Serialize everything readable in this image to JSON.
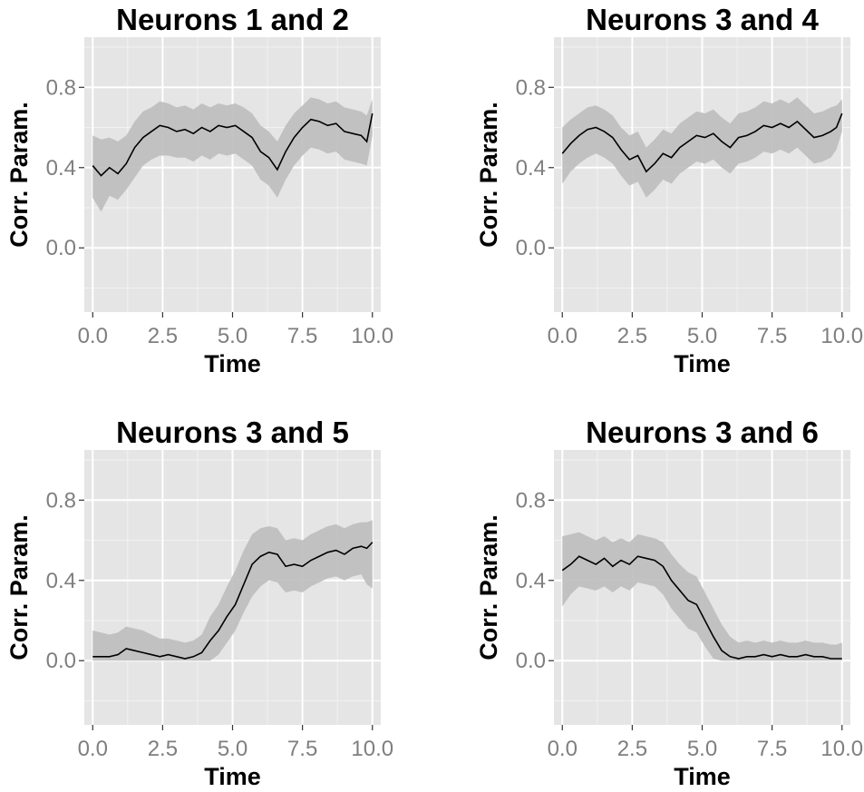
{
  "colors": {
    "panel_background": "#e5e5e5",
    "grid_major": "#ffffff",
    "grid_minor": "#f2f2f2",
    "ribbon": "#bdbdbd",
    "line": "#000000",
    "tick_text": "#7f7f7f"
  },
  "chart_data": [
    {
      "type": "line",
      "title": "Neurons  1 and  2",
      "xlabel": "Time",
      "ylabel": "Corr. Param.",
      "xlim": [
        -0.3,
        10.3
      ],
      "ylim": [
        -0.32,
        1.05
      ],
      "xticks": [
        "0.0",
        "2.5",
        "5.0",
        "7.5",
        "10.0"
      ],
      "xtick_values": [
        0,
        2.5,
        5,
        7.5,
        10
      ],
      "yticks": [
        "0.0",
        "0.4",
        "0.8"
      ],
      "ytick_values": [
        0,
        0.4,
        0.8
      ],
      "grid": true,
      "series": [
        {
          "x": [
            0.0,
            0.3,
            0.6,
            0.9,
            1.2,
            1.5,
            1.8,
            2.1,
            2.4,
            2.7,
            3.0,
            3.3,
            3.6,
            3.9,
            4.2,
            4.5,
            4.8,
            5.1,
            5.4,
            5.7,
            6.0,
            6.3,
            6.6,
            6.9,
            7.2,
            7.5,
            7.8,
            8.1,
            8.4,
            8.7,
            9.0,
            9.3,
            9.6,
            9.8,
            10.0
          ],
          "y": [
            0.41,
            0.36,
            0.4,
            0.37,
            0.42,
            0.5,
            0.55,
            0.58,
            0.61,
            0.6,
            0.58,
            0.59,
            0.57,
            0.6,
            0.58,
            0.61,
            0.6,
            0.61,
            0.58,
            0.55,
            0.48,
            0.45,
            0.39,
            0.48,
            0.55,
            0.6,
            0.64,
            0.63,
            0.61,
            0.62,
            0.58,
            0.57,
            0.56,
            0.53,
            0.67
          ],
          "lower": [
            0.25,
            0.18,
            0.26,
            0.24,
            0.29,
            0.35,
            0.41,
            0.44,
            0.46,
            0.46,
            0.45,
            0.45,
            0.43,
            0.46,
            0.44,
            0.47,
            0.46,
            0.47,
            0.44,
            0.41,
            0.34,
            0.31,
            0.25,
            0.34,
            0.41,
            0.46,
            0.5,
            0.49,
            0.47,
            0.48,
            0.44,
            0.43,
            0.42,
            0.41,
            0.56
          ],
          "upper": [
            0.56,
            0.54,
            0.55,
            0.53,
            0.56,
            0.63,
            0.68,
            0.7,
            0.73,
            0.72,
            0.7,
            0.71,
            0.69,
            0.72,
            0.7,
            0.72,
            0.71,
            0.72,
            0.7,
            0.67,
            0.61,
            0.58,
            0.53,
            0.61,
            0.67,
            0.71,
            0.75,
            0.74,
            0.72,
            0.73,
            0.7,
            0.69,
            0.68,
            0.66,
            0.74
          ]
        }
      ]
    },
    {
      "type": "line",
      "title": "Neurons  3 and  4",
      "xlabel": "Time",
      "ylabel": "Corr. Param.",
      "xlim": [
        -0.3,
        10.3
      ],
      "ylim": [
        -0.32,
        1.05
      ],
      "xticks": [
        "0.0",
        "2.5",
        "5.0",
        "7.5",
        "10.0"
      ],
      "xtick_values": [
        0,
        2.5,
        5,
        7.5,
        10
      ],
      "yticks": [
        "0.0",
        "0.4",
        "0.8"
      ],
      "ytick_values": [
        0,
        0.4,
        0.8
      ],
      "grid": true,
      "series": [
        {
          "x": [
            0.0,
            0.3,
            0.6,
            0.9,
            1.2,
            1.5,
            1.8,
            2.1,
            2.4,
            2.7,
            3.0,
            3.3,
            3.6,
            3.9,
            4.2,
            4.5,
            4.8,
            5.1,
            5.4,
            5.7,
            6.0,
            6.3,
            6.6,
            6.9,
            7.2,
            7.5,
            7.8,
            8.1,
            8.4,
            8.7,
            9.0,
            9.3,
            9.6,
            9.8,
            10.0
          ],
          "y": [
            0.47,
            0.52,
            0.56,
            0.59,
            0.6,
            0.58,
            0.55,
            0.49,
            0.44,
            0.46,
            0.38,
            0.42,
            0.47,
            0.45,
            0.5,
            0.53,
            0.56,
            0.55,
            0.57,
            0.53,
            0.5,
            0.55,
            0.56,
            0.58,
            0.61,
            0.6,
            0.62,
            0.6,
            0.63,
            0.59,
            0.55,
            0.56,
            0.58,
            0.6,
            0.67
          ],
          "lower": [
            0.32,
            0.38,
            0.42,
            0.45,
            0.47,
            0.45,
            0.42,
            0.36,
            0.31,
            0.33,
            0.25,
            0.29,
            0.34,
            0.32,
            0.37,
            0.4,
            0.43,
            0.42,
            0.44,
            0.4,
            0.37,
            0.42,
            0.43,
            0.45,
            0.48,
            0.47,
            0.49,
            0.47,
            0.5,
            0.46,
            0.42,
            0.43,
            0.45,
            0.49,
            0.58
          ],
          "upper": [
            0.6,
            0.64,
            0.67,
            0.7,
            0.71,
            0.69,
            0.66,
            0.6,
            0.56,
            0.58,
            0.5,
            0.54,
            0.59,
            0.57,
            0.62,
            0.65,
            0.68,
            0.67,
            0.69,
            0.65,
            0.62,
            0.67,
            0.68,
            0.7,
            0.73,
            0.72,
            0.74,
            0.72,
            0.75,
            0.71,
            0.67,
            0.68,
            0.7,
            0.71,
            0.74
          ]
        }
      ]
    },
    {
      "type": "line",
      "title": "Neurons  3 and  5",
      "xlabel": "Time",
      "ylabel": "Corr. Param.",
      "xlim": [
        -0.3,
        10.3
      ],
      "ylim": [
        -0.32,
        1.05
      ],
      "xticks": [
        "0.0",
        "2.5",
        "5.0",
        "7.5",
        "10.0"
      ],
      "xtick_values": [
        0,
        2.5,
        5,
        7.5,
        10
      ],
      "yticks": [
        "0.0",
        "0.4",
        "0.8"
      ],
      "ytick_values": [
        0,
        0.4,
        0.8
      ],
      "grid": true,
      "series": [
        {
          "x": [
            0.0,
            0.3,
            0.6,
            0.9,
            1.2,
            1.5,
            1.8,
            2.1,
            2.4,
            2.7,
            3.0,
            3.3,
            3.6,
            3.9,
            4.2,
            4.5,
            4.8,
            5.1,
            5.4,
            5.7,
            6.0,
            6.3,
            6.6,
            6.9,
            7.2,
            7.5,
            7.8,
            8.1,
            8.4,
            8.7,
            9.0,
            9.3,
            9.6,
            9.8,
            10.0
          ],
          "y": [
            0.02,
            0.02,
            0.02,
            0.03,
            0.06,
            0.05,
            0.04,
            0.03,
            0.02,
            0.03,
            0.02,
            0.01,
            0.02,
            0.04,
            0.1,
            0.15,
            0.22,
            0.28,
            0.38,
            0.48,
            0.52,
            0.54,
            0.53,
            0.47,
            0.48,
            0.47,
            0.5,
            0.52,
            0.54,
            0.55,
            0.53,
            0.56,
            0.57,
            0.56,
            0.59
          ],
          "lower": [
            0.0,
            0.0,
            0.0,
            0.0,
            0.0,
            0.0,
            0.0,
            0.0,
            0.0,
            0.0,
            0.0,
            0.0,
            0.0,
            0.0,
            0.0,
            0.03,
            0.09,
            0.15,
            0.24,
            0.32,
            0.37,
            0.4,
            0.39,
            0.34,
            0.35,
            0.34,
            0.37,
            0.39,
            0.41,
            0.42,
            0.4,
            0.42,
            0.43,
            0.38,
            0.36
          ],
          "upper": [
            0.15,
            0.14,
            0.13,
            0.14,
            0.17,
            0.16,
            0.15,
            0.13,
            0.11,
            0.11,
            0.1,
            0.09,
            0.1,
            0.13,
            0.22,
            0.28,
            0.37,
            0.45,
            0.55,
            0.63,
            0.66,
            0.67,
            0.66,
            0.6,
            0.61,
            0.6,
            0.63,
            0.65,
            0.67,
            0.68,
            0.66,
            0.68,
            0.69,
            0.69,
            0.7
          ]
        }
      ]
    },
    {
      "type": "line",
      "title": "Neurons  3 and  6",
      "xlabel": "Time",
      "ylabel": "Corr. Param.",
      "xlim": [
        -0.3,
        10.3
      ],
      "ylim": [
        -0.32,
        1.05
      ],
      "xticks": [
        "0.0",
        "2.5",
        "5.0",
        "7.5",
        "10.0"
      ],
      "xtick_values": [
        0,
        2.5,
        5,
        7.5,
        10
      ],
      "yticks": [
        "0.0",
        "0.4",
        "0.8"
      ],
      "ytick_values": [
        0,
        0.4,
        0.8
      ],
      "grid": true,
      "series": [
        {
          "x": [
            0.0,
            0.3,
            0.6,
            0.9,
            1.2,
            1.5,
            1.8,
            2.1,
            2.4,
            2.7,
            3.0,
            3.3,
            3.6,
            3.9,
            4.2,
            4.5,
            4.8,
            5.1,
            5.4,
            5.7,
            6.0,
            6.3,
            6.6,
            6.9,
            7.2,
            7.5,
            7.8,
            8.1,
            8.4,
            8.7,
            9.0,
            9.3,
            9.6,
            9.8,
            10.0
          ],
          "y": [
            0.45,
            0.48,
            0.52,
            0.5,
            0.48,
            0.51,
            0.47,
            0.5,
            0.48,
            0.52,
            0.51,
            0.5,
            0.47,
            0.4,
            0.35,
            0.3,
            0.28,
            0.2,
            0.12,
            0.05,
            0.02,
            0.01,
            0.02,
            0.02,
            0.03,
            0.02,
            0.03,
            0.02,
            0.02,
            0.03,
            0.02,
            0.02,
            0.01,
            0.01,
            0.01
          ],
          "lower": [
            0.27,
            0.33,
            0.37,
            0.36,
            0.35,
            0.37,
            0.34,
            0.37,
            0.35,
            0.39,
            0.38,
            0.37,
            0.33,
            0.26,
            0.21,
            0.16,
            0.14,
            0.07,
            0.01,
            0.0,
            0.0,
            0.0,
            0.0,
            0.0,
            0.0,
            0.0,
            0.0,
            0.0,
            0.0,
            0.0,
            0.0,
            0.0,
            0.0,
            0.0,
            0.0
          ],
          "upper": [
            0.62,
            0.63,
            0.64,
            0.62,
            0.6,
            0.62,
            0.59,
            0.61,
            0.59,
            0.63,
            0.62,
            0.61,
            0.59,
            0.53,
            0.48,
            0.44,
            0.42,
            0.34,
            0.26,
            0.18,
            0.12,
            0.09,
            0.1,
            0.09,
            0.1,
            0.09,
            0.1,
            0.09,
            0.09,
            0.1,
            0.09,
            0.09,
            0.08,
            0.08,
            0.09
          ]
        }
      ]
    }
  ]
}
